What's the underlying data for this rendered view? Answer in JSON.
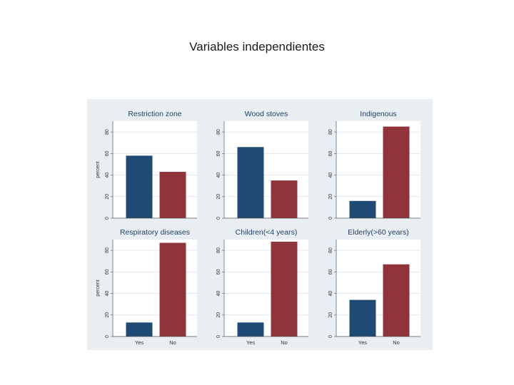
{
  "slide": {
    "title": "Variables independientes"
  },
  "colors": {
    "background": "#e9eef3",
    "plot_bg": "#ffffff",
    "yes": "#1f4a73",
    "no": "#8f343b",
    "title": "#203f6a"
  },
  "chart_data": [
    {
      "type": "bar",
      "title": "Restriction zone",
      "categories": [
        "Yes",
        "No"
      ],
      "values": [
        58,
        43
      ],
      "ylabel": "percent",
      "ylim": [
        0,
        90
      ],
      "yticks": [
        0,
        20,
        40,
        60,
        80
      ],
      "show_xlabels": false,
      "grid": true
    },
    {
      "type": "bar",
      "title": "Wood stoves",
      "categories": [
        "Yes",
        "No"
      ],
      "values": [
        66,
        35
      ],
      "ylabel": "",
      "ylim": [
        0,
        90
      ],
      "yticks": [
        0,
        20,
        40,
        60,
        80
      ],
      "show_xlabels": false,
      "grid": true
    },
    {
      "type": "bar",
      "title": "Indigenous",
      "categories": [
        "Yes",
        "No"
      ],
      "values": [
        16,
        85
      ],
      "ylabel": "",
      "ylim": [
        0,
        90
      ],
      "yticks": [
        0,
        20,
        40,
        60,
        80
      ],
      "show_xlabels": false,
      "grid": true
    },
    {
      "type": "bar",
      "title": "Respiratory diseases",
      "categories": [
        "Yes",
        "No"
      ],
      "values": [
        13,
        87
      ],
      "ylabel": "percent",
      "ylim": [
        0,
        90
      ],
      "yticks": [
        0,
        20,
        40,
        60,
        80
      ],
      "show_xlabels": true,
      "grid": true
    },
    {
      "type": "bar",
      "title": "Children(<4 years)",
      "categories": [
        "Yes",
        "No"
      ],
      "values": [
        13,
        88
      ],
      "ylabel": "",
      "ylim": [
        0,
        90
      ],
      "yticks": [
        0,
        20,
        40,
        60,
        80
      ],
      "show_xlabels": true,
      "grid": true
    },
    {
      "type": "bar",
      "title": "Elderly(>60 years)",
      "categories": [
        "Yes",
        "No"
      ],
      "values": [
        34,
        67
      ],
      "ylabel": "",
      "ylim": [
        0,
        90
      ],
      "yticks": [
        0,
        20,
        40,
        60,
        80
      ],
      "show_xlabels": true,
      "grid": true
    }
  ]
}
